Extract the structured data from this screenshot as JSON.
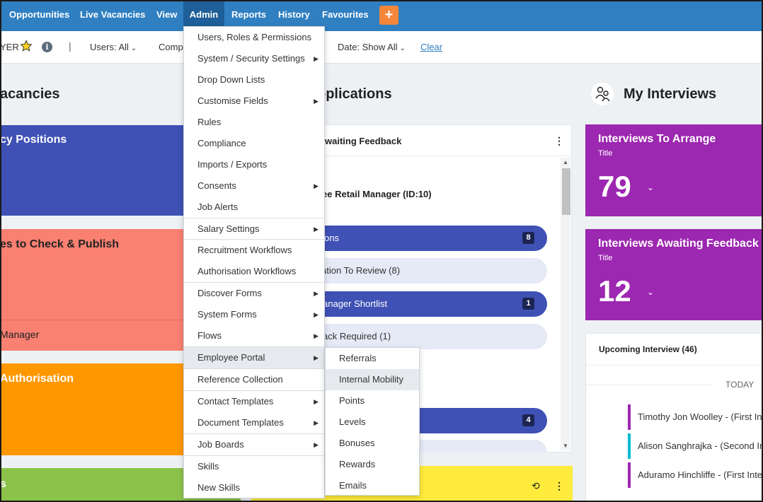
{
  "nav": {
    "items": [
      "Opportunities",
      "Live Vacancies",
      "View",
      "Admin",
      "Reports",
      "History",
      "Favourites"
    ],
    "plus": "+"
  },
  "filterbar": {
    "prefix": "YER",
    "pipe": "|",
    "users": "Users: All",
    "company": "Comp",
    "date": "Date: Show All",
    "clear": "Clear"
  },
  "left": {
    "heading": "acancies",
    "card1": "cy Positions",
    "card2": "es to Check & Publish",
    "card2b": "Manager",
    "card3": "Authorisation",
    "card4": "s"
  },
  "middle": {
    "heading": "pplications",
    "panel_title": "waiting Feedback",
    "job_title": "ee Retail Manager (ID:10)",
    "pills": [
      {
        "label": "ons",
        "badge": "8"
      },
      {
        "label": "ation To Review (8)",
        "badge": ""
      },
      {
        "label": "anager Shortlist",
        "badge": "1"
      },
      {
        "label": "ack Required (1)",
        "badge": ""
      },
      {
        "label": "",
        "badge": "4"
      }
    ]
  },
  "right": {
    "heading": "My Interviews",
    "card1": {
      "title": "Interviews To Arrange",
      "sub": "Title",
      "num": "79"
    },
    "card2": {
      "title": "Interviews Awaiting Feedback",
      "sub": "Title",
      "num": "12"
    },
    "upcoming_title": "Upcoming Interview (46)",
    "today": "TODAY",
    "interviews": [
      {
        "name": "Timothy Jon Woolley - (First In",
        "color": "#9c27b0"
      },
      {
        "name": "Alison Sanghrajka - (Second In",
        "color": "#00bcd4"
      },
      {
        "name": "Aduramo Hinchliffe - (First Inte",
        "color": "#9c27b0"
      }
    ]
  },
  "menu": {
    "items": [
      {
        "label": "Users, Roles & Permissions",
        "arrow": false
      },
      {
        "label": "System / Security Settings",
        "arrow": true
      },
      {
        "label": "Drop Down Lists",
        "arrow": false
      },
      {
        "label": "Customise Fields",
        "arrow": true
      },
      {
        "label": "Rules",
        "arrow": false
      },
      {
        "label": "Compliance",
        "arrow": false
      },
      {
        "label": "Imports / Exports",
        "arrow": false
      },
      {
        "label": "Consents",
        "arrow": true
      },
      {
        "label": "Job Alerts",
        "arrow": false
      },
      {
        "label": "Salary Settings",
        "arrow": true
      },
      {
        "label": "Recruitment Workflows",
        "arrow": false
      },
      {
        "label": "Authorisation Workflows",
        "arrow": false
      },
      {
        "label": "Discover Forms",
        "arrow": true
      },
      {
        "label": "System Forms",
        "arrow": true
      },
      {
        "label": "Flows",
        "arrow": true
      },
      {
        "label": "Employee Portal",
        "arrow": true
      },
      {
        "label": "Reference Collection",
        "arrow": false
      },
      {
        "label": "Contact Templates",
        "arrow": true
      },
      {
        "label": "Document Templates",
        "arrow": true
      },
      {
        "label": "Job Boards",
        "arrow": true
      },
      {
        "label": "Skills",
        "arrow": false
      },
      {
        "label": "New Skills",
        "arrow": false
      }
    ],
    "arrow_glyph": "▶"
  },
  "submenu": {
    "items": [
      "Referrals",
      "Internal Mobility",
      "Points",
      "Levels",
      "Bonuses",
      "Rewards",
      "Emails"
    ]
  },
  "colors": {
    "nav": "#2f7fc1",
    "indigo": "#3f51b5",
    "salmon": "#fa8072",
    "orange": "#ff9800",
    "green": "#8bc34a",
    "yellow": "#ffeb3b",
    "purple": "#9c27b0"
  }
}
